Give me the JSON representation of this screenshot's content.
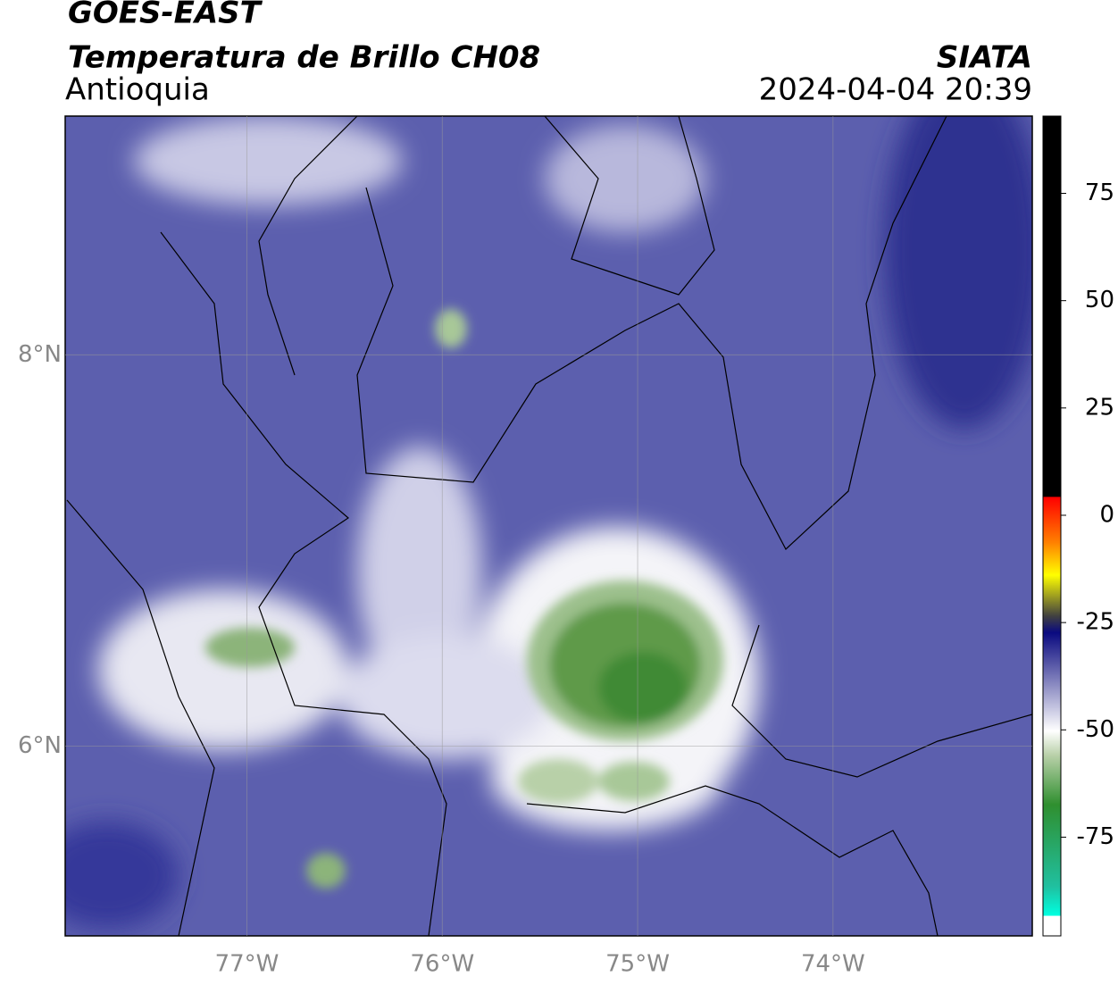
{
  "header": {
    "title": "GOES-EAST",
    "subtitle": "Temperatura de Brillo CH08",
    "region": "Antioquia",
    "source": "SIATA",
    "datetime": "2024-04-04 20:39"
  },
  "map": {
    "xlim": [
      -77.93,
      -72.98
    ],
    "ylim": [
      5.03,
      9.22
    ],
    "xticks": [
      {
        "value": -77,
        "label": "77°W"
      },
      {
        "value": -76,
        "label": "76°W"
      },
      {
        "value": -75,
        "label": "75°W"
      },
      {
        "value": -74,
        "label": "74°W"
      }
    ],
    "yticks": [
      {
        "value": 8,
        "label": "8°N"
      },
      {
        "value": 6,
        "label": "6°N"
      }
    ],
    "grid": true
  },
  "colorbar": {
    "lim": [
      -98,
      93
    ],
    "ticks": [
      75,
      50,
      25,
      0,
      -25,
      -50,
      -75
    ]
  }
}
